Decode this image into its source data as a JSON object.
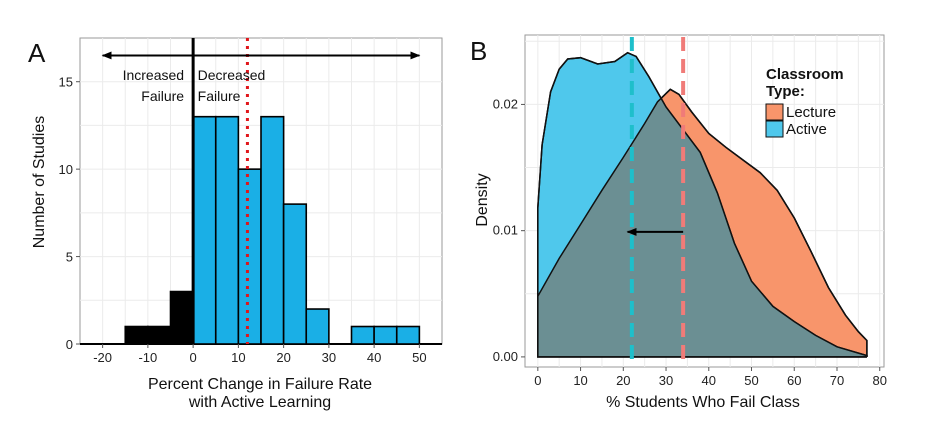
{
  "chart_data": [
    {
      "panel": "A",
      "type": "bar",
      "xlabel_lines": [
        "Percent Change in Failure Rate",
        "with Active Learning"
      ],
      "ylabel": "Number of Studies",
      "xlim": [
        -25,
        55
      ],
      "ylim": [
        0,
        17.5
      ],
      "xticks": [
        -20,
        -10,
        0,
        10,
        20,
        30,
        40,
        50
      ],
      "yticks": [
        0,
        5,
        10,
        15
      ],
      "bin_width": 5,
      "bins": [
        {
          "x0": -15,
          "x1": -10,
          "count": 1,
          "group": "increased"
        },
        {
          "x0": -10,
          "x1": -5,
          "count": 1,
          "group": "increased"
        },
        {
          "x0": -5,
          "x1": 0,
          "count": 3,
          "group": "increased"
        },
        {
          "x0": 0,
          "x1": 5,
          "count": 13,
          "group": "decreased"
        },
        {
          "x0": 5,
          "x1": 10,
          "count": 13,
          "group": "decreased"
        },
        {
          "x0": 10,
          "x1": 15,
          "count": 10,
          "group": "decreased"
        },
        {
          "x0": 15,
          "x1": 20,
          "count": 13,
          "group": "decreased"
        },
        {
          "x0": 20,
          "x1": 25,
          "count": 8,
          "group": "decreased"
        },
        {
          "x0": 25,
          "x1": 30,
          "count": 2,
          "group": "decreased"
        },
        {
          "x0": 35,
          "x1": 40,
          "count": 1,
          "group": "decreased"
        },
        {
          "x0": 40,
          "x1": 45,
          "count": 1,
          "group": "decreased"
        },
        {
          "x0": 45,
          "x1": 50,
          "count": 1,
          "group": "decreased"
        }
      ],
      "zero_line_x": 0,
      "mean_line_x": 12,
      "baseline_extent": [
        -25,
        55
      ],
      "arrow": {
        "from": -20,
        "to": 50,
        "y": 16.5
      },
      "annotations": [
        {
          "text": "Increased",
          "x": -2,
          "y": 15.1,
          "anchor": "end"
        },
        {
          "text": "Decreased",
          "x": 1,
          "y": 15.1,
          "anchor": "start"
        },
        {
          "text": "Failure",
          "x": -2,
          "y": 13.9,
          "anchor": "end"
        },
        {
          "text": "Failure",
          "x": 1,
          "y": 13.9,
          "anchor": "start"
        }
      ],
      "colors": {
        "increased": "#000000",
        "decreased": "#1aafe6",
        "mean_line": "#e0161b",
        "zero_line": "#000000"
      }
    },
    {
      "panel": "B",
      "type": "area",
      "xlabel": "% Students Who Fail Class",
      "ylabel": "Density",
      "xlim": [
        -3,
        81
      ],
      "ylim": [
        -0.0008,
        0.0255
      ],
      "xticks": [
        0,
        10,
        20,
        30,
        40,
        50,
        60,
        70,
        80
      ],
      "yticks": [
        0.0,
        0.01,
        0.02
      ],
      "ytick_labels": [
        "0.00",
        "0.01",
        "0.02"
      ],
      "legend": {
        "title": [
          "Classroom",
          "Type:"
        ],
        "placement": "top-right"
      },
      "series": [
        {
          "name": "Lecture",
          "color": "#f8956b",
          "points": [
            [
              0,
              0.0048
            ],
            [
              5,
              0.0078
            ],
            [
              10,
              0.0105
            ],
            [
              15,
              0.0132
            ],
            [
              20,
              0.0158
            ],
            [
              25,
              0.0185
            ],
            [
              28,
              0.0202
            ],
            [
              31,
              0.0212
            ],
            [
              33,
              0.0208
            ],
            [
              36,
              0.0194
            ],
            [
              40,
              0.0177
            ],
            [
              44,
              0.0166
            ],
            [
              48,
              0.0156
            ],
            [
              52,
              0.0146
            ],
            [
              56,
              0.0132
            ],
            [
              60,
              0.011
            ],
            [
              64,
              0.0083
            ],
            [
              68,
              0.0055
            ],
            [
              72,
              0.0033
            ],
            [
              75,
              0.002
            ],
            [
              77,
              0.0013
            ],
            [
              77,
              0
            ]
          ],
          "mean": 34
        },
        {
          "name": "Active",
          "color": "#4fc8ec",
          "points": [
            [
              0,
              0.0118
            ],
            [
              1,
              0.0168
            ],
            [
              3,
              0.021
            ],
            [
              5,
              0.0228
            ],
            [
              7,
              0.0236
            ],
            [
              10,
              0.0237
            ],
            [
              14,
              0.0232
            ],
            [
              18,
              0.0234
            ],
            [
              21,
              0.0241
            ],
            [
              23,
              0.0238
            ],
            [
              26,
              0.0222
            ],
            [
              30,
              0.0198
            ],
            [
              34,
              0.018
            ],
            [
              38,
              0.0162
            ],
            [
              42,
              0.013
            ],
            [
              46,
              0.009
            ],
            [
              50,
              0.006
            ],
            [
              55,
              0.004
            ],
            [
              60,
              0.0028
            ],
            [
              65,
              0.0017
            ],
            [
              70,
              0.0008
            ],
            [
              75,
              0.0003
            ],
            [
              77,
              0.0001
            ],
            [
              77,
              0
            ]
          ],
          "mean": 22
        }
      ],
      "arrow": {
        "from": 34,
        "to": 21,
        "y": 0.0099
      },
      "colors": {
        "lecture": "#f8956b",
        "active": "#4fc8ec",
        "lecture_mean_line": "#f07b78",
        "active_mean_line": "#1ebfcb",
        "overlap": "#6b8f93"
      }
    }
  ]
}
